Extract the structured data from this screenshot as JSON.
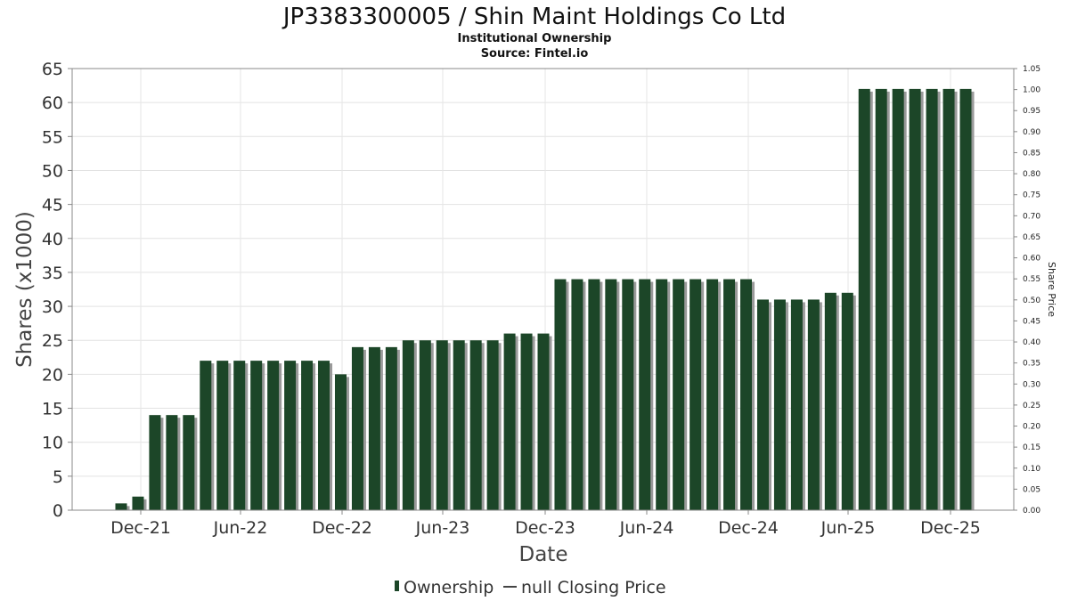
{
  "chart_data": {
    "type": "bar",
    "title": "JP3383300005 / Shin Maint Holdings Co Ltd",
    "subtitle": "Institutional Ownership",
    "source": "Source: Fintel.io",
    "xlabel": "Date",
    "ylabel": "Shares (x1000)",
    "y2label": "Share Price",
    "ylim": [
      0,
      65
    ],
    "y2lim": [
      0,
      1.05
    ],
    "yticks": [
      "0",
      "5",
      "10",
      "15",
      "20",
      "25",
      "30",
      "35",
      "40",
      "45",
      "50",
      "55",
      "60",
      "65"
    ],
    "y2ticks": [
      "0.00",
      "0.05",
      "0.10",
      "0.15",
      "0.20",
      "0.25",
      "0.30",
      "0.35",
      "0.40",
      "0.45",
      "0.50",
      "0.55",
      "0.60",
      "0.65",
      "0.70",
      "0.75",
      "0.80",
      "0.85",
      "0.90",
      "0.95",
      "1.00",
      "1.05"
    ],
    "xticks": [
      "Dec-21",
      "Jun-22",
      "Dec-22",
      "Jun-23",
      "Dec-23",
      "Jun-24",
      "Dec-24",
      "Jun-25",
      "Dec-25"
    ],
    "series": [
      {
        "name": "Ownership",
        "color": "#1c4628",
        "values": [
          1,
          2,
          14,
          14,
          14,
          22,
          22,
          22,
          22,
          22,
          22,
          22,
          22,
          20,
          24,
          24,
          24,
          25,
          25,
          25,
          25,
          25,
          25,
          26,
          26,
          26,
          34,
          34,
          34,
          34,
          34,
          34,
          34,
          34,
          34,
          34,
          34,
          34,
          31,
          31,
          31,
          31,
          32,
          32,
          62,
          62,
          62,
          62,
          62,
          62,
          62
        ]
      }
    ],
    "legend": {
      "position": "bottom",
      "items": [
        {
          "label": "Ownership",
          "kind": "bar-swatch",
          "color": "#1c4628"
        },
        {
          "label": "null Closing Price",
          "kind": "line",
          "color": "#444444"
        }
      ]
    }
  }
}
